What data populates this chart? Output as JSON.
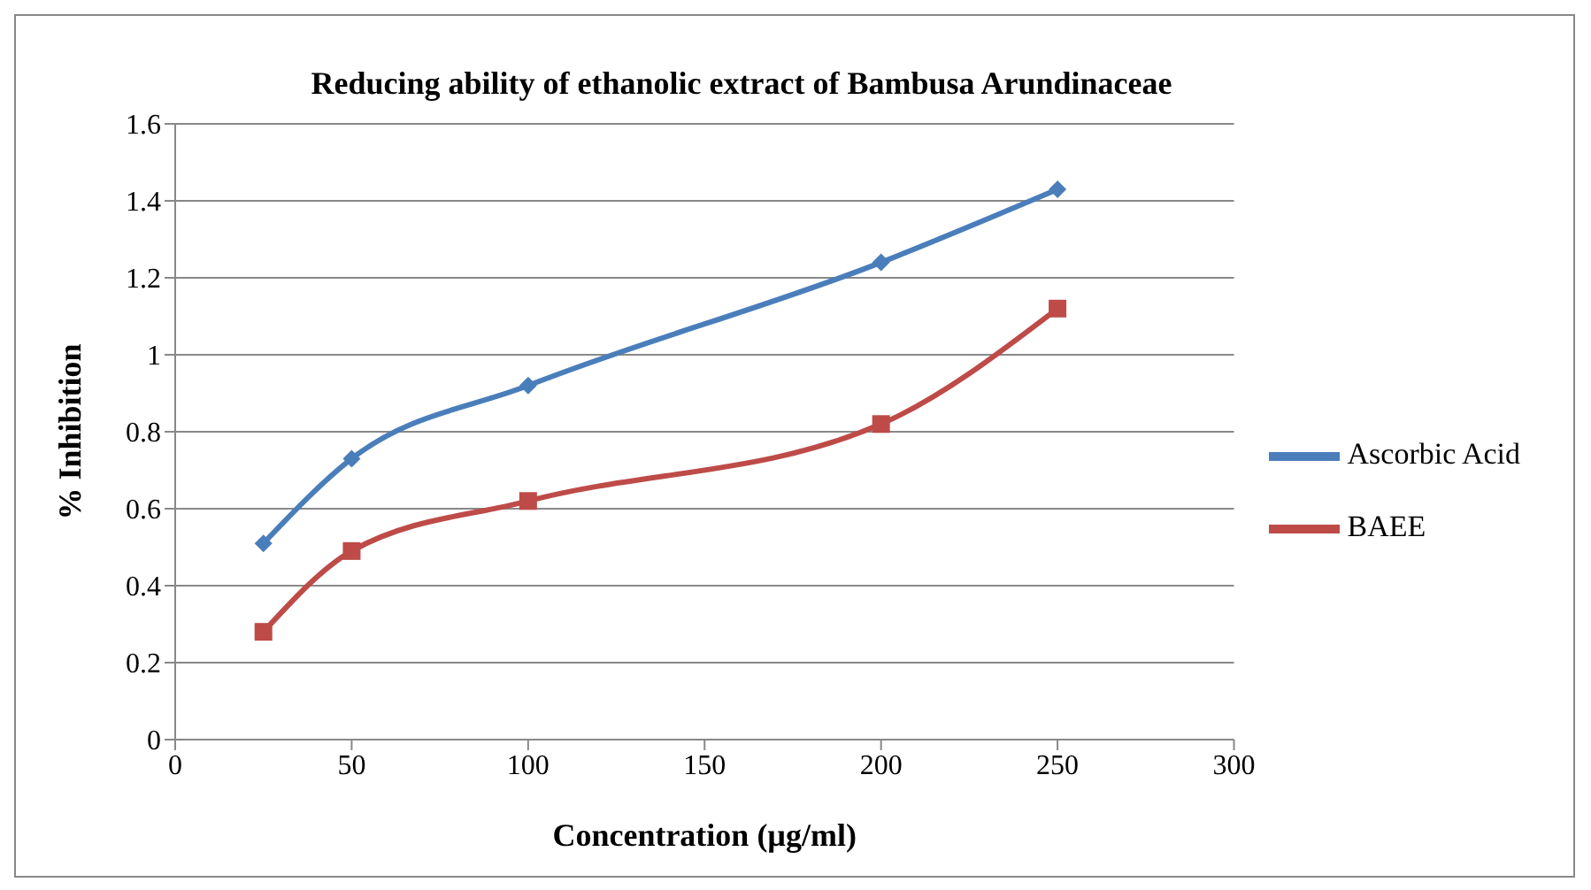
{
  "chart_data": {
    "type": "line",
    "title": "Reducing ability of ethanolic extract of Bambusa Arundinaceae",
    "xlabel": "Concentration (µg/ml)",
    "ylabel": "% Inhibition",
    "x": [
      25,
      50,
      100,
      200,
      250
    ],
    "series": [
      {
        "name": "Ascorbic Acid",
        "color": "#4a7ebb",
        "marker": "diamond",
        "values": [
          0.51,
          0.73,
          0.92,
          1.24,
          1.43
        ]
      },
      {
        "name": "BAEE",
        "color": "#be4b48",
        "marker": "square",
        "values": [
          0.28,
          0.49,
          0.62,
          0.82,
          1.12
        ]
      }
    ],
    "xlim": [
      0,
      300
    ],
    "xticks": [
      0,
      50,
      100,
      150,
      200,
      250,
      300
    ],
    "ylim": [
      0,
      1.6
    ],
    "yticks": [
      0,
      0.2,
      0.4,
      0.6,
      0.8,
      1,
      1.2,
      1.4,
      1.6
    ],
    "grid": "y",
    "legend": "right"
  }
}
